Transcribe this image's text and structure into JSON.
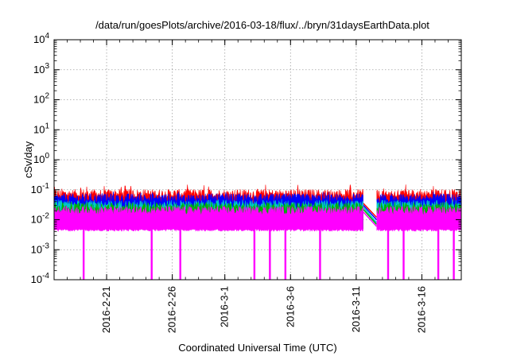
{
  "chart_data": {
    "type": "area",
    "title": "/data/run/goesPlots/archive/2016-03-18/flux/../bryn/31daysEarthData.plot",
    "xlabel": "Coordinated Universal Time (UTC)",
    "ylabel": "cSv/day",
    "y_scale": "log",
    "ylim": [
      0.0001,
      10000
    ],
    "y_tick_labels": [
      {
        "base": "10",
        "exp": "-4"
      },
      {
        "base": "10",
        "exp": "-3"
      },
      {
        "base": "10",
        "exp": "-2"
      },
      {
        "base": "10",
        "exp": "-1"
      },
      {
        "base": "10",
        "exp": "0"
      },
      {
        "base": "10",
        "exp": "1"
      },
      {
        "base": "10",
        "exp": "2"
      },
      {
        "base": "10",
        "exp": "3"
      },
      {
        "base": "10",
        "exp": "4"
      }
    ],
    "xlim": [
      "2016-02-17",
      "2016-03-19"
    ],
    "x_tick_labels": [
      "2016-2-21",
      "2016-2-26",
      "2016-3-1",
      "2016-3-6",
      "2016-3-11",
      "2016-3-16"
    ],
    "x_ticks": [
      "2016-02-21",
      "2016-02-26",
      "2016-03-01",
      "2016-03-06",
      "2016-03-11",
      "2016-03-16"
    ],
    "grid": true,
    "data_gap": [
      "2016-03-11",
      "2016-03-12"
    ],
    "series": [
      {
        "color": "#ff0000",
        "level_typical": 0.07,
        "level_peak": 0.15
      },
      {
        "color": "#0000ff",
        "level_typical": 0.05,
        "level_peak": 0.09
      },
      {
        "color": "#00c8c8",
        "level_typical": 0.03,
        "level_peak": 0.05
      },
      {
        "color": "#00b000",
        "level_typical": 0.025,
        "level_peak": 0.04
      },
      {
        "color": "#ff00ff",
        "level_typical": 0.02,
        "level_floor": 0.005,
        "dip_value": 0.0001
      }
    ],
    "dips": [
      "2016-02-19",
      "2016-02-24",
      "2016-02-26",
      "2016-03-03",
      "2016-03-04",
      "2016-03-05",
      "2016-03-08",
      "2016-03-13",
      "2016-03-14",
      "2016-03-17",
      "2016-03-18"
    ]
  }
}
